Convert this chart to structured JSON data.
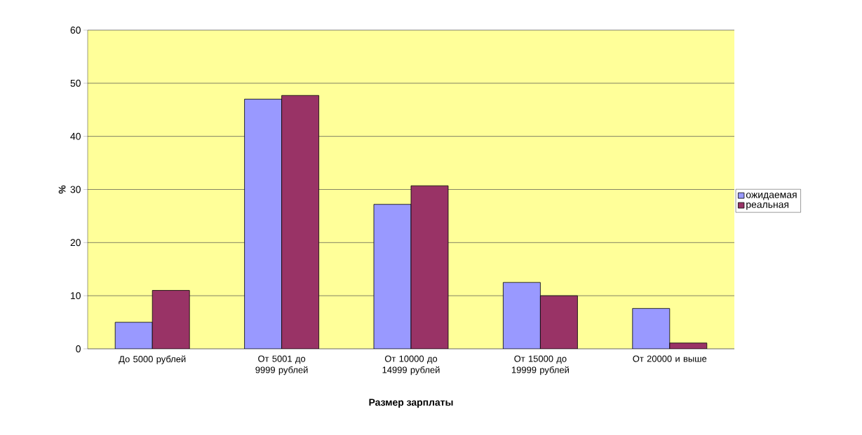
{
  "chart_data": {
    "type": "bar",
    "xlabel": "Размер зарплаты",
    "ylabel": "%",
    "categories": [
      "До 5000 рублей",
      "От 5001 до 9999 рублей",
      "От 10000 до 14999 рублей",
      "От 15000 до 19999 рублей",
      "От 20000 и выше"
    ],
    "series": [
      {
        "name": "ожидаемая",
        "color": "#9999ff",
        "values": [
          5.0,
          47.0,
          27.2,
          12.5,
          7.6
        ]
      },
      {
        "name": "реальная",
        "color": "#993366",
        "values": [
          11.0,
          47.7,
          30.7,
          10.0,
          1.1
        ]
      }
    ],
    "ylim": [
      0,
      60
    ],
    "yticks": [
      0,
      10,
      20,
      30,
      40,
      50,
      60
    ],
    "grid": "y",
    "legend": "right"
  }
}
